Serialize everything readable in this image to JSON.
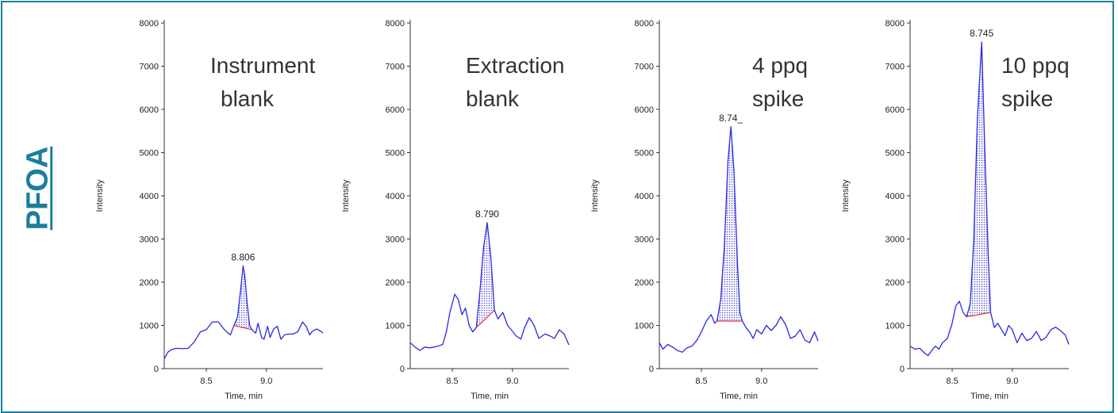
{
  "compound": "PFOA",
  "colors": {
    "frame": "#1a7f9c",
    "trace": "#2a2ae0",
    "fill": "#4a4ae8",
    "baseline": "#e03030",
    "axis": "#333333"
  },
  "chart_data": [
    {
      "type": "line",
      "title_lines": [
        "Instrument",
        "blank"
      ],
      "xlabel": "Time, min",
      "ylabel": "Intensity",
      "xlim": [
        8.15,
        9.47
      ],
      "ylim": [
        0,
        8000
      ],
      "xticks": [
        8.5,
        9.0
      ],
      "xtick_labels": [
        "8.5",
        "9.0"
      ],
      "yticks": [
        0,
        1000,
        2000,
        3000,
        4000,
        5000,
        6000,
        7000,
        8000
      ],
      "ytick_labels": [
        "0",
        "1000",
        "2000",
        "3000",
        "4000",
        "5000",
        "6000",
        "7000",
        "8000"
      ],
      "peak_label": "8.806",
      "peak": {
        "x": 8.806,
        "y": 2380,
        "start_x": 8.73,
        "end_x": 8.88
      },
      "x": [
        8.15,
        8.18,
        8.21,
        8.25,
        8.3,
        8.35,
        8.4,
        8.45,
        8.5,
        8.55,
        8.6,
        8.65,
        8.7,
        8.73,
        8.76,
        8.78,
        8.8,
        8.806,
        8.82,
        8.84,
        8.86,
        8.88,
        8.91,
        8.93,
        8.96,
        8.98,
        9.01,
        9.03,
        9.06,
        9.09,
        9.12,
        9.15,
        9.18,
        9.22,
        9.26,
        9.3,
        9.33,
        9.36,
        9.38,
        9.42,
        9.47
      ],
      "y": [
        230,
        380,
        440,
        470,
        460,
        470,
        620,
        850,
        900,
        1080,
        1080,
        900,
        780,
        1000,
        1200,
        1700,
        2200,
        2380,
        2150,
        1500,
        1000,
        900,
        820,
        1050,
        720,
        680,
        980,
        720,
        920,
        980,
        680,
        780,
        800,
        800,
        850,
        1080,
        980,
        780,
        860,
        920,
        830
      ]
    },
    {
      "type": "line",
      "title_lines": [
        "Extraction",
        "blank"
      ],
      "xlabel": "Time, min",
      "ylabel": "Intensity",
      "xlim": [
        8.15,
        9.47
      ],
      "ylim": [
        0,
        8000
      ],
      "xticks": [
        8.5,
        9.0
      ],
      "xtick_labels": [
        "8.5",
        "9.0"
      ],
      "yticks": [
        0,
        1000,
        2000,
        3000,
        4000,
        5000,
        6000,
        7000,
        8000
      ],
      "ytick_labels": [
        "0",
        "1000",
        "2000",
        "3000",
        "4000",
        "5000",
        "6000",
        "7000",
        "8000"
      ],
      "peak_label": "8.790",
      "peak": {
        "x": 8.79,
        "y": 3380,
        "start_x": 8.7,
        "end_x": 8.85
      },
      "x": [
        8.15,
        8.19,
        8.23,
        8.27,
        8.31,
        8.35,
        8.38,
        8.42,
        8.45,
        8.48,
        8.52,
        8.55,
        8.58,
        8.61,
        8.64,
        8.67,
        8.7,
        8.73,
        8.76,
        8.79,
        8.82,
        8.85,
        8.88,
        8.92,
        8.96,
        8.99,
        9.03,
        9.07,
        9.1,
        9.14,
        9.18,
        9.22,
        9.27,
        9.31,
        9.35,
        9.39,
        9.43,
        9.47
      ],
      "y": [
        600,
        500,
        420,
        500,
        480,
        500,
        520,
        560,
        850,
        1300,
        1720,
        1600,
        1250,
        1400,
        1000,
        850,
        950,
        1800,
        2800,
        3380,
        2600,
        1350,
        1150,
        1300,
        1000,
        900,
        760,
        680,
        940,
        1180,
        1000,
        700,
        800,
        760,
        700,
        900,
        800,
        550
      ]
    },
    {
      "type": "line",
      "title_lines": [
        "4 ppq",
        "spike"
      ],
      "xlabel": "Time, min",
      "ylabel": "Intensity",
      "xlim": [
        8.15,
        9.47
      ],
      "ylim": [
        0,
        8000
      ],
      "xticks": [
        8.5,
        9.0
      ],
      "xtick_labels": [
        "8.5",
        "9.0"
      ],
      "yticks": [
        0,
        1000,
        2000,
        3000,
        4000,
        5000,
        6000,
        7000,
        8000
      ],
      "ytick_labels": [
        "0",
        "1000",
        "2000",
        "3000",
        "4000",
        "5000",
        "6000",
        "7000",
        "8000"
      ],
      "peak_label": "8.74_",
      "peak": {
        "x": 8.745,
        "y": 5600,
        "start_x": 8.63,
        "end_x": 8.84
      },
      "x": [
        8.15,
        8.18,
        8.22,
        8.26,
        8.3,
        8.34,
        8.38,
        8.42,
        8.46,
        8.5,
        8.54,
        8.58,
        8.61,
        8.63,
        8.66,
        8.69,
        8.72,
        8.745,
        8.77,
        8.8,
        8.82,
        8.84,
        8.87,
        8.9,
        8.93,
        8.96,
        9.0,
        9.04,
        9.08,
        9.12,
        9.16,
        9.2,
        9.24,
        9.28,
        9.32,
        9.36,
        9.4,
        9.44,
        9.47
      ],
      "y": [
        600,
        450,
        560,
        500,
        420,
        380,
        480,
        520,
        650,
        850,
        1100,
        1250,
        1050,
        1100,
        1600,
        2800,
        4800,
        5600,
        4600,
        2400,
        1300,
        1100,
        950,
        850,
        700,
        900,
        800,
        1000,
        880,
        1000,
        1200,
        1020,
        700,
        750,
        900,
        660,
        600,
        850,
        640
      ]
    },
    {
      "type": "line",
      "title_lines": [
        "10 ppq",
        "spike"
      ],
      "xlabel": "Time, min",
      "ylabel": "Intensity",
      "xlim": [
        8.15,
        9.47
      ],
      "ylim": [
        0,
        8000
      ],
      "xticks": [
        8.5,
        9.0
      ],
      "xtick_labels": [
        "8.5",
        "9.0"
      ],
      "yticks": [
        0,
        1000,
        2000,
        3000,
        4000,
        5000,
        6000,
        7000,
        8000
      ],
      "ytick_labels": [
        "0",
        "1000",
        "2000",
        "3000",
        "4000",
        "5000",
        "6000",
        "7000",
        "8000"
      ],
      "peak_label": "8.745",
      "peak": {
        "x": 8.745,
        "y": 7560,
        "start_x": 8.62,
        "end_x": 8.82
      },
      "x": [
        8.15,
        8.19,
        8.23,
        8.27,
        8.3,
        8.33,
        8.36,
        8.39,
        8.42,
        8.46,
        8.5,
        8.53,
        8.56,
        8.59,
        8.62,
        8.65,
        8.68,
        8.71,
        8.745,
        8.77,
        8.8,
        8.82,
        8.85,
        8.88,
        8.91,
        8.94,
        8.97,
        9.0,
        9.04,
        9.08,
        9.12,
        9.16,
        9.2,
        9.24,
        9.28,
        9.32,
        9.36,
        9.4,
        9.44,
        9.47
      ],
      "y": [
        520,
        450,
        470,
        360,
        300,
        420,
        520,
        450,
        600,
        700,
        1050,
        1450,
        1560,
        1300,
        1200,
        1500,
        3000,
        5800,
        7560,
        5200,
        2600,
        1300,
        950,
        1050,
        900,
        760,
        1000,
        900,
        600,
        820,
        650,
        700,
        860,
        650,
        720,
        900,
        960,
        880,
        780,
        560
      ]
    }
  ]
}
